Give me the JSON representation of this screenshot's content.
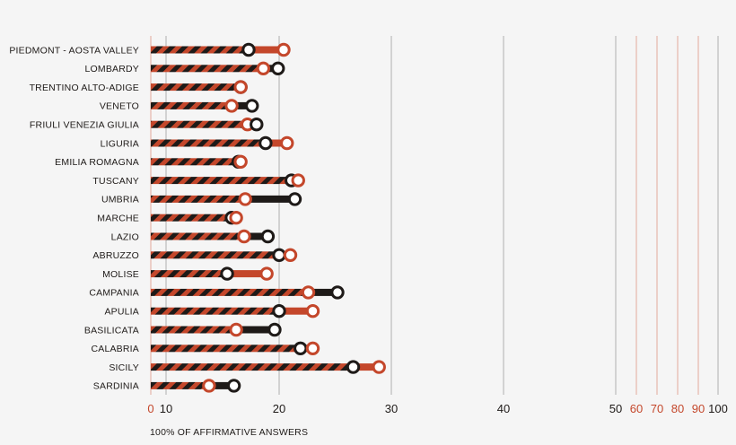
{
  "chart_data": {
    "type": "dumbbell",
    "xlabel": "100% OF AFFIRMATIVE ANSWERS",
    "x_ticks": [
      {
        "label": "0",
        "value": 0,
        "color": "#c4472b",
        "gridline": false
      },
      {
        "label": "10",
        "value": 10,
        "color": "#1e1a18",
        "gridline": true
      },
      {
        "label": "20",
        "value": 20,
        "color": "#1e1a18",
        "gridline": true
      },
      {
        "label": "30",
        "value": 30,
        "color": "#1e1a18",
        "gridline": true
      },
      {
        "label": "40",
        "value": 40,
        "color": "#1e1a18",
        "gridline": true
      },
      {
        "label": "50",
        "value": 50,
        "color": "#1e1a18",
        "gridline": true
      },
      {
        "label": "60",
        "value": 60,
        "color": "#c4472b",
        "gridline": true
      },
      {
        "label": "70",
        "value": 70,
        "color": "#c4472b",
        "gridline": true
      },
      {
        "label": "80",
        "value": 80,
        "color": "#c4472b",
        "gridline": true
      },
      {
        "label": "90",
        "value": 90,
        "color": "#c4472b",
        "gridline": true
      },
      {
        "label": "100",
        "value": 100,
        "color": "#1e1a18",
        "gridline": true
      }
    ],
    "colors": {
      "dark": "#1e1a18",
      "red": "#c4472b",
      "background": "#f5f5f5",
      "grid_dark": "#b0b0b0",
      "grid_red": "#e2a99a"
    },
    "rows": [
      {
        "category": "PIEDMONT - AOSTA VALLEY",
        "dark": 17.3,
        "red": 20.4
      },
      {
        "category": "LOMBARDY",
        "dark": 19.9,
        "red": 18.6
      },
      {
        "category": "TRENTINO ALTO-ADIGE",
        "dark": 16.6,
        "red": 16.6
      },
      {
        "category": "VENETO",
        "dark": 17.6,
        "red": 15.8
      },
      {
        "category": "FRIULI VENEZIA GIULIA",
        "dark": 18.0,
        "red": 17.2
      },
      {
        "category": "LIGURIA",
        "dark": 18.8,
        "red": 20.7
      },
      {
        "category": "EMILIA ROMAGNA",
        "dark": 16.4,
        "red": 16.6
      },
      {
        "category": "TUSCANY",
        "dark": 21.1,
        "red": 21.7
      },
      {
        "category": "UMBRIA",
        "dark": 21.4,
        "red": 17.0
      },
      {
        "category": "MARCHE",
        "dark": 15.8,
        "red": 16.2
      },
      {
        "category": "LAZIO",
        "dark": 19.0,
        "red": 16.9
      },
      {
        "category": "ABRUZZO",
        "dark": 20.0,
        "red": 21.0
      },
      {
        "category": "MOLISE",
        "dark": 15.4,
        "red": 18.9
      },
      {
        "category": "CAMPANIA",
        "dark": 25.2,
        "red": 22.6
      },
      {
        "category": "APULIA",
        "dark": 20.0,
        "red": 23.0
      },
      {
        "category": "BASILICATA",
        "dark": 19.6,
        "red": 16.2
      },
      {
        "category": "CALABRIA",
        "dark": 21.9,
        "red": 23.0
      },
      {
        "category": "SICILY",
        "dark": 26.6,
        "red": 28.9
      },
      {
        "category": "SARDINIA",
        "dark": 16.0,
        "red": 13.8
      }
    ]
  }
}
